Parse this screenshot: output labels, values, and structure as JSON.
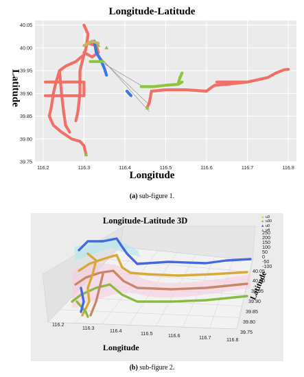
{
  "chart_data": [
    {
      "type": "scatter",
      "title": "Longitude-Latitude",
      "xlabel": "Longitude",
      "ylabel": "Latitude",
      "xlim": [
        116.18,
        116.82
      ],
      "ylim": [
        39.75,
        40.06
      ],
      "x_ticks": [
        "116.2",
        "116.3",
        "116.4",
        "116.5",
        "116.6",
        "116.7",
        "116.8"
      ],
      "y_ticks": [
        "39.75",
        "39.80",
        "39.85",
        "39.90",
        "39.95",
        "40.00",
        "40.05"
      ],
      "grid": true,
      "series": [
        {
          "color": "#f07068",
          "path": [
            [
              116.3,
              40.05
            ],
            [
              116.31,
              40.03
            ],
            [
              116.305,
              40.0
            ],
            [
              116.3,
              39.985
            ],
            [
              116.28,
              39.97
            ],
            [
              116.255,
              39.96
            ],
            [
              116.24,
              39.95
            ],
            [
              116.23,
              39.92
            ],
            [
              116.225,
              39.9
            ],
            [
              116.22,
              39.87
            ],
            [
              116.215,
              39.85
            ],
            [
              116.225,
              39.83
            ],
            [
              116.245,
              39.815
            ],
            [
              116.27,
              39.8
            ],
            [
              116.29,
              39.795
            ],
            [
              116.3,
              39.785
            ],
            [
              116.305,
              39.765
            ]
          ]
        },
        {
          "color": "#f07068",
          "path": [
            [
              116.24,
              39.95
            ],
            [
              116.245,
              39.9
            ],
            [
              116.25,
              39.86
            ],
            [
              116.255,
              39.83
            ],
            [
              116.265,
              39.815
            ]
          ]
        },
        {
          "color": "#f07068",
          "path": [
            [
              116.205,
              39.925
            ],
            [
              116.24,
              39.925
            ],
            [
              116.3,
              39.925
            ],
            [
              116.3,
              39.895
            ],
            [
              116.24,
              39.895
            ],
            [
              116.205,
              39.895
            ]
          ]
        },
        {
          "color": "#f07068",
          "path": [
            [
              116.3,
              39.985
            ],
            [
              116.29,
              39.95
            ],
            [
              116.29,
              39.9
            ],
            [
              116.285,
              39.86
            ],
            [
              116.28,
              39.84
            ]
          ]
        },
        {
          "color": "#f07068",
          "path": [
            [
              116.31,
              40.01
            ],
            [
              116.33,
              40.005
            ],
            [
              116.335,
              39.99
            ],
            [
              116.32,
              39.98
            ],
            [
              116.3,
              39.99
            ]
          ]
        },
        {
          "color": "#f07068",
          "path": [
            [
              116.455,
              39.87
            ],
            [
              116.46,
              39.88
            ],
            [
              116.465,
              39.905
            ],
            [
              116.5,
              39.908
            ],
            [
              116.55,
              39.908
            ],
            [
              116.6,
              39.905
            ],
            [
              116.61,
              39.912
            ],
            [
              116.62,
              39.918
            ],
            [
              116.65,
              39.92
            ],
            [
              116.7,
              39.925
            ],
            [
              116.75,
              39.935
            ],
            [
              116.77,
              39.945
            ],
            [
              116.79,
              39.952
            ],
            [
              116.8,
              39.953
            ]
          ]
        },
        {
          "color": "#f07068",
          "path": [
            [
              116.625,
              39.925
            ],
            [
              116.66,
              39.925
            ],
            [
              116.7,
              39.925
            ]
          ]
        },
        {
          "color": "#3a78e0",
          "path": [
            [
              116.325,
              40.015
            ],
            [
              116.33,
              39.99
            ],
            [
              116.34,
              39.975
            ],
            [
              116.35,
              39.955
            ],
            [
              116.355,
              39.94
            ]
          ]
        },
        {
          "color": "#3a78e0",
          "path": [
            [
              116.405,
              39.905
            ],
            [
              116.41,
              39.9
            ],
            [
              116.415,
              39.895
            ]
          ]
        },
        {
          "color": "#8cc63f",
          "path": [
            [
              116.315,
              39.97
            ],
            [
              116.33,
              39.97
            ],
            [
              116.345,
              39.97
            ]
          ]
        },
        {
          "color": "#8cc63f",
          "path": [
            [
              116.44,
              39.915
            ],
            [
              116.47,
              39.915
            ],
            [
              116.5,
              39.918
            ],
            [
              116.53,
              39.92
            ],
            [
              116.54,
              39.925
            ]
          ]
        },
        {
          "color": "#8cc63f",
          "path": [
            [
              116.53,
              39.92
            ],
            [
              116.535,
              39.935
            ],
            [
              116.54,
              39.945
            ]
          ]
        },
        {
          "color": "#c8b45a",
          "path": [
            [
              116.3,
              40.005
            ],
            [
              116.32,
              40.015
            ],
            [
              116.335,
              40.01
            ]
          ]
        }
      ]
    },
    {
      "type": "scatter",
      "title": "Longitude-Latitude 3D",
      "xlabel": "Longitude",
      "ylabel": "Latitude",
      "x_ticks": [
        "116.2",
        "116.3",
        "116.4",
        "116.5",
        "116.6",
        "116.7",
        "116.8"
      ],
      "y_ticks": [
        "39.75",
        "39.80",
        "39.85",
        "39.90",
        "39.95",
        "40.00",
        "40.05"
      ],
      "z_ticks": [
        "250",
        "200",
        "150",
        "100",
        "50",
        "0",
        "-50",
        "-100"
      ],
      "legend": [
        "u3",
        "u30",
        "u0",
        "u4"
      ],
      "legend_colors": [
        "#e0c040",
        "#a0b030",
        "#4060d0",
        "#a0a0a0"
      ],
      "legend_position": "top-right",
      "series_colors": [
        "#4468e0",
        "#d8a838",
        "#c88868",
        "#88bb40"
      ]
    }
  ],
  "captions": {
    "fig1_label": "(a)",
    "fig1_text": " sub-figure 1.",
    "fig2_label": "(b)",
    "fig2_text": " sub-figure 2."
  }
}
